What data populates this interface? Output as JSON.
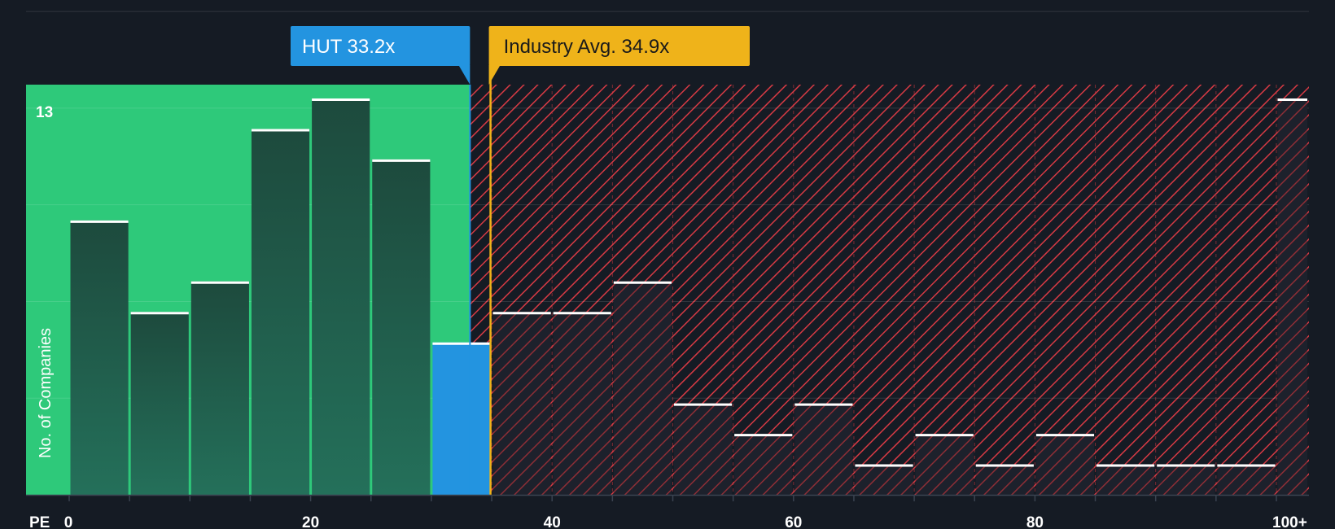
{
  "chart_data": {
    "type": "bar",
    "title": "",
    "xlabel": "PE",
    "ylabel": "No. of Companies",
    "x_tick_labels": [
      "0",
      "20",
      "40",
      "60",
      "80",
      "100+"
    ],
    "x_tick_values": [
      0,
      20,
      40,
      60,
      80,
      100
    ],
    "xlim": [
      0,
      102
    ],
    "ylim": [
      0,
      13.5
    ],
    "y_max_label": "13",
    "bin_width": 5,
    "bins": [
      {
        "start": 0,
        "value": 9
      },
      {
        "start": 5,
        "value": 6
      },
      {
        "start": 10,
        "value": 7
      },
      {
        "start": 15,
        "value": 12
      },
      {
        "start": 20,
        "value": 13
      },
      {
        "start": 25,
        "value": 11
      },
      {
        "start": 30,
        "value": 5
      },
      {
        "start": 35,
        "value": 6
      },
      {
        "start": 40,
        "value": 6
      },
      {
        "start": 45,
        "value": 7
      },
      {
        "start": 50,
        "value": 3
      },
      {
        "start": 55,
        "value": 2
      },
      {
        "start": 60,
        "value": 3
      },
      {
        "start": 65,
        "value": 1
      },
      {
        "start": 70,
        "value": 2
      },
      {
        "start": 75,
        "value": 1
      },
      {
        "start": 80,
        "value": 2
      },
      {
        "start": 85,
        "value": 1
      },
      {
        "start": 90,
        "value": 1
      },
      {
        "start": 95,
        "value": 1
      },
      {
        "start": 100,
        "value": 13
      }
    ],
    "company": {
      "label": "HUT 33.2x",
      "value": 33.2
    },
    "industry_avg": {
      "label": "Industry Avg. 34.9x",
      "value": 34.9
    },
    "grid": true,
    "colors": {
      "background": "#151b24",
      "fair_zone": "#2ec97a",
      "bar_fair": "#1f4a3f",
      "bar_company": "#2394e0",
      "bar_over": "#1d212c",
      "hatch": "#d63a44",
      "company_callout": "#2394e0",
      "industry_callout": "#efb31a"
    }
  }
}
